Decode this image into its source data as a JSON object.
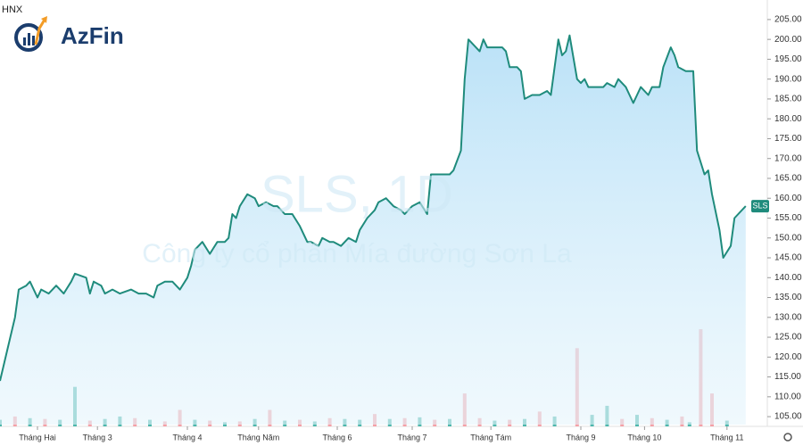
{
  "chart_data": {
    "type": "area",
    "exchange": "HNX",
    "brand": "AzFin",
    "watermark_title": "SLS, 1D",
    "watermark_subtitle": "Công ty cổ phần Mía đường Sơn La",
    "price_label": "SLS",
    "color": "#1f8b7c",
    "x": [
      0,
      2,
      4,
      5,
      7,
      8,
      10,
      11,
      13,
      15,
      17,
      19,
      20,
      23,
      24,
      25,
      27,
      28,
      30,
      32,
      35,
      37,
      39,
      41,
      42,
      44,
      46,
      48,
      50,
      51,
      52,
      54,
      56,
      58,
      60,
      61,
      62,
      63,
      64,
      66,
      68,
      69,
      71,
      73,
      74,
      76,
      78,
      80,
      81,
      82,
      83,
      85,
      86,
      88,
      89,
      91,
      93,
      95,
      96,
      98,
      100,
      101,
      103,
      105,
      107,
      108,
      110,
      112,
      114,
      115,
      117,
      119,
      120,
      121,
      123,
      124,
      125,
      127,
      128,
      129,
      130,
      132,
      134,
      135,
      136,
      138,
      139,
      140,
      142,
      144,
      146,
      147,
      149,
      150,
      151,
      152,
      154,
      155,
      156,
      157,
      159,
      161,
      162,
      164,
      165,
      167,
      168,
      169,
      170,
      171,
      173,
      174,
      176,
      177,
      179,
      180,
      181,
      183,
      185,
      186,
      188,
      189,
      190,
      192,
      193,
      195,
      196,
      197,
      199
    ],
    "values": [
      114,
      122,
      130,
      137,
      138,
      139,
      135,
      137,
      136,
      138,
      136,
      139,
      141,
      140,
      136,
      139,
      138,
      136,
      137,
      136,
      137,
      136,
      136,
      135,
      138,
      139,
      139,
      137,
      140,
      143,
      147,
      149,
      146,
      149,
      149,
      150,
      156,
      155,
      158,
      161,
      160,
      158,
      159,
      158,
      158,
      156,
      156,
      153,
      151,
      149,
      149,
      148,
      150,
      149,
      149,
      148,
      150,
      149,
      152,
      155,
      157,
      159,
      160,
      158,
      157,
      156,
      158,
      159,
      156,
      166,
      166,
      166,
      166,
      167,
      172,
      190,
      200,
      198,
      197,
      200,
      198,
      198,
      198,
      197,
      193,
      193,
      192,
      185,
      186,
      186,
      187,
      186,
      200,
      196,
      197,
      201,
      190,
      189,
      190,
      188,
      188,
      188,
      189,
      188,
      190,
      188,
      186,
      184,
      186,
      188,
      186,
      188,
      188,
      193,
      198,
      196,
      193,
      192,
      192,
      172,
      166,
      167,
      161,
      152,
      145,
      148,
      155,
      156,
      158
    ],
    "xlim": [
      0,
      200
    ],
    "xticks": [
      {
        "value": 10,
        "label": "Tháng Hai"
      },
      {
        "value": 26,
        "label": "Tháng 3"
      },
      {
        "value": 50,
        "label": "Tháng 4"
      },
      {
        "value": 69,
        "label": "Tháng Năm"
      },
      {
        "value": 90,
        "label": "Tháng 6"
      },
      {
        "value": 110,
        "label": "Tháng 7"
      },
      {
        "value": 131,
        "label": "Tháng Tám"
      },
      {
        "value": 155,
        "label": "Tháng 9"
      },
      {
        "value": 172,
        "label": "Tháng 10"
      },
      {
        "value": 194,
        "label": "Tháng 11"
      }
    ],
    "ylim": [
      103,
      207
    ],
    "yticks": [
      {
        "value": 105,
        "label": "105.00"
      },
      {
        "value": 110,
        "label": "110.00"
      },
      {
        "value": 115,
        "label": "115.00"
      },
      {
        "value": 120,
        "label": "120.00"
      },
      {
        "value": 125,
        "label": "125.00"
      },
      {
        "value": 130,
        "label": "130.00"
      },
      {
        "value": 135,
        "label": "135.00"
      },
      {
        "value": 140,
        "label": "140.00"
      },
      {
        "value": 145,
        "label": "145.00"
      },
      {
        "value": 150,
        "label": "150.00"
      },
      {
        "value": 155,
        "label": "155.00"
      },
      {
        "value": 160,
        "label": "160.00"
      },
      {
        "value": 165,
        "label": "165.00"
      },
      {
        "value": 170,
        "label": "170.00"
      },
      {
        "value": 175,
        "label": "175.00"
      },
      {
        "value": 180,
        "label": "180.00"
      },
      {
        "value": 185,
        "label": "185.00"
      },
      {
        "value": 190,
        "label": "190.00"
      },
      {
        "value": 195,
        "label": "195.00"
      },
      {
        "value": 200,
        "label": "200.00"
      },
      {
        "value": 205,
        "label": "205.00"
      }
    ],
    "volume": {
      "x": [
        0,
        4,
        8,
        12,
        16,
        20,
        24,
        28,
        32,
        36,
        40,
        44,
        48,
        52,
        56,
        60,
        64,
        68,
        72,
        76,
        80,
        84,
        88,
        92,
        96,
        100,
        104,
        108,
        112,
        116,
        120,
        124,
        128,
        132,
        136,
        140,
        144,
        148,
        154,
        158,
        162,
        166,
        170,
        174,
        178,
        182,
        184,
        187,
        190,
        194
      ],
      "values": [
        8,
        12,
        10,
        9,
        8,
        48,
        7,
        9,
        12,
        10,
        8,
        6,
        20,
        8,
        7,
        5,
        6,
        9,
        20,
        7,
        8,
        6,
        10,
        9,
        8,
        15,
        9,
        10,
        11,
        8,
        9,
        40,
        10,
        7,
        8,
        9,
        18,
        12,
        95,
        14,
        25,
        9,
        14,
        10,
        8,
        12,
        5,
        118,
        40,
        7
      ],
      "colors": [
        "#4db6ac",
        "#f4a0a6",
        "#4db6ac",
        "#f4a0a6",
        "#4db6ac",
        "#4db6ac",
        "#f4a0a6",
        "#4db6ac",
        "#4db6ac",
        "#f4a0a6",
        "#4db6ac",
        "#f4a0a6",
        "#f4a0a6",
        "#4db6ac",
        "#f4a0a6",
        "#4db6ac",
        "#f4a0a6",
        "#4db6ac",
        "#f4a0a6",
        "#4db6ac",
        "#f4a0a6",
        "#4db6ac",
        "#f4a0a6",
        "#4db6ac",
        "#4db6ac",
        "#f4a0a6",
        "#4db6ac",
        "#f4a0a6",
        "#4db6ac",
        "#f4a0a6",
        "#4db6ac",
        "#f4a0a6",
        "#f4a0a6",
        "#4db6ac",
        "#f4a0a6",
        "#4db6ac",
        "#f4a0a6",
        "#4db6ac",
        "#f4a0a6",
        "#4db6ac",
        "#4db6ac",
        "#f4a0a6",
        "#4db6ac",
        "#f4a0a6",
        "#4db6ac",
        "#f4a0a6",
        "#4db6ac",
        "#f4a0a6",
        "#f4a0a6",
        "#4db6ac"
      ],
      "vlim": [
        0,
        130
      ]
    }
  }
}
